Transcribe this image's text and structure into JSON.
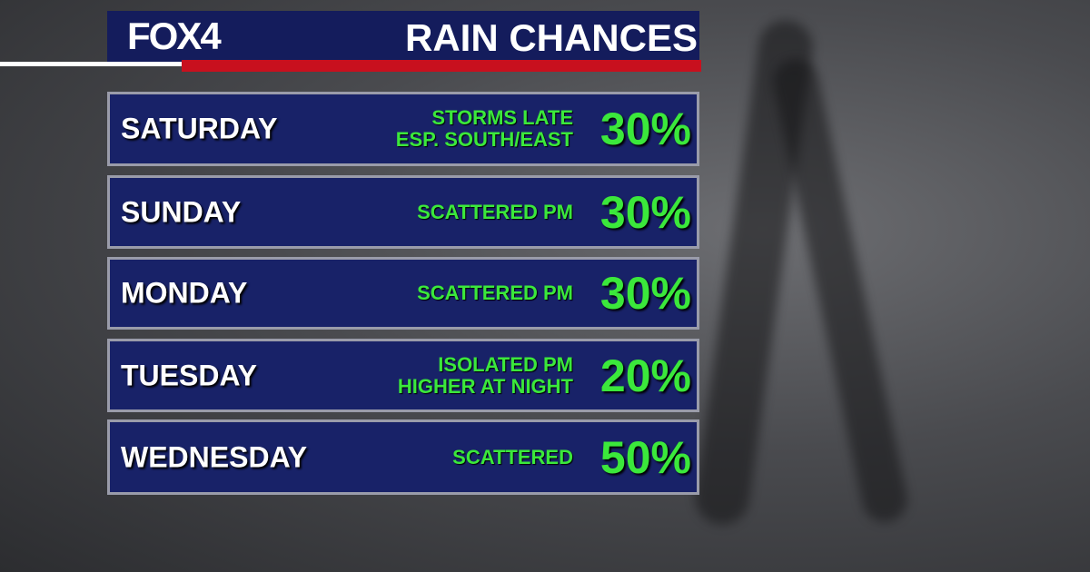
{
  "header": {
    "logo": "FOX4",
    "title": "RAIN CHANCES"
  },
  "rows": [
    {
      "day": "SATURDAY",
      "note": [
        "STORMS LATE",
        "ESP. SOUTH/EAST"
      ],
      "chance": "30%"
    },
    {
      "day": "SUNDAY",
      "note": [
        "SCATTERED PM"
      ],
      "chance": "30%"
    },
    {
      "day": "MONDAY",
      "note": [
        "SCATTERED PM"
      ],
      "chance": "30%"
    },
    {
      "day": "TUESDAY",
      "note": [
        "ISOLATED PM",
        "HIGHER AT NIGHT"
      ],
      "chance": "20%"
    },
    {
      "day": "WEDNESDAY",
      "note": [
        "SCATTERED"
      ],
      "chance": "50%"
    }
  ]
}
